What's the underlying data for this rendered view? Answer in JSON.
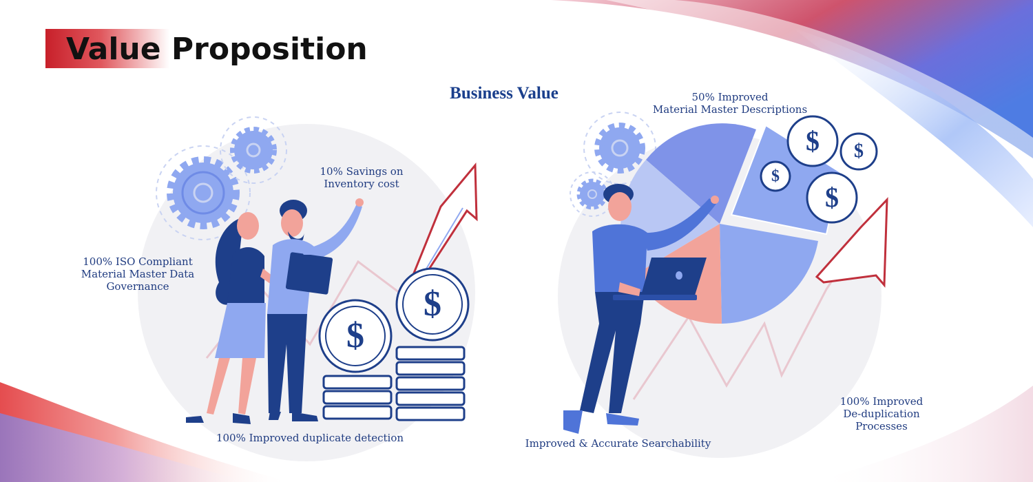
{
  "header": {
    "title": "Value Proposition"
  },
  "section": {
    "subtitle": "Business Value"
  },
  "benefits": {
    "inventory_savings": [
      "10% Savings on",
      "Inventory cost"
    ],
    "iso_compliance": [
      "100% ISO Compliant",
      "Material Master Data",
      "Governance"
    ],
    "duplicate_detection": [
      "100% Improved duplicate detection"
    ],
    "descriptions": [
      "50% Improved",
      "Material Master Descriptions"
    ],
    "searchability": [
      "Improved & Accurate Searchability"
    ],
    "deduplication": [
      "100% Improved",
      "De-duplication",
      "Processes"
    ]
  },
  "icons": {
    "currency_symbol": "$"
  },
  "colors": {
    "title_accent": "#c8202a",
    "label_text": "#1f3b80",
    "illustration_dark": "#1e3f8a",
    "illustration_light": "#8fa8f0",
    "arrow_red": "#c0303c"
  }
}
